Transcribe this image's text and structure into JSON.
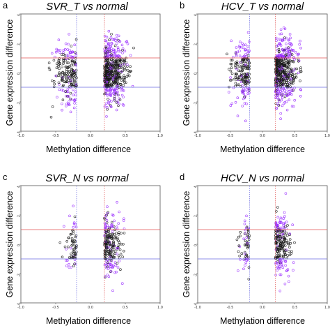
{
  "chart_data": [
    {
      "type": "scatter",
      "panel": "a",
      "title": "SVR_T vs normal",
      "xlabel": "Methylation difference",
      "ylabel": "Gene expression difference",
      "xlim": [
        -1.0,
        1.0
      ],
      "ylim": [
        -4,
        4
      ],
      "x_ticks": [
        "-1.0",
        "-0.5",
        "0.0",
        "0.5",
        "1.0"
      ],
      "y_ticks": [
        "-4",
        "-2",
        "0",
        "2",
        "4"
      ],
      "vlines": [
        -0.2,
        0.2
      ],
      "hlines": [
        1,
        -1
      ],
      "colors": {
        "black": "#1a1a1a",
        "purple": "#9b30ff",
        "red": "#e05050",
        "blue": "#6a6ae0"
      },
      "clusters": [
        {
          "x_range": [
            -0.65,
            -0.2
          ],
          "count": 220,
          "purple_fraction": 0.3
        },
        {
          "x_range": [
            0.2,
            0.62
          ],
          "count": 520,
          "purple_fraction": 0.3
        }
      ],
      "points_description_only": false
    },
    {
      "type": "scatter",
      "panel": "b",
      "title": "HCV_T vs normal",
      "xlabel": "Methylation difference",
      "ylabel": "Gene expression difference",
      "xlim": [
        -1.0,
        1.0
      ],
      "ylim": [
        -4,
        4
      ],
      "x_ticks": [
        "-1.0",
        "-0.5",
        "0.0",
        "0.5",
        "1.0"
      ],
      "y_ticks": [
        "-4",
        "-2",
        "0",
        "2",
        "4"
      ],
      "vlines": [
        -0.2,
        0.2
      ],
      "hlines": [
        1,
        -1
      ],
      "colors": {
        "black": "#1a1a1a",
        "purple": "#9b30ff",
        "red": "#e05050",
        "blue": "#6a6ae0"
      },
      "clusters": [
        {
          "x_range": [
            -0.55,
            -0.2
          ],
          "count": 200,
          "purple_fraction": 0.35
        },
        {
          "x_range": [
            0.2,
            0.6
          ],
          "count": 500,
          "purple_fraction": 0.35
        }
      ]
    },
    {
      "type": "scatter",
      "panel": "c",
      "title": "SVR_N vs normal",
      "xlabel": "Methylation difference",
      "ylabel": "Gene expression difference",
      "xlim": [
        -1.0,
        1.0
      ],
      "ylim": [
        -4,
        4
      ],
      "x_ticks": [
        "-1.0",
        "-0.5",
        "0.0",
        "0.5",
        "1.0"
      ],
      "y_ticks": [
        "-4",
        "-2",
        "0",
        "2",
        "4"
      ],
      "vlines": [
        -0.2,
        0.2
      ],
      "hlines": [
        1,
        -1
      ],
      "colors": {
        "black": "#1a1a1a",
        "purple": "#9b30ff",
        "red": "#e05050",
        "blue": "#6a6ae0"
      },
      "clusters": [
        {
          "x_range": [
            -0.45,
            -0.2
          ],
          "count": 70,
          "purple_fraction": 0.3
        },
        {
          "x_range": [
            0.2,
            0.5
          ],
          "count": 230,
          "purple_fraction": 0.3
        }
      ]
    },
    {
      "type": "scatter",
      "panel": "d",
      "title": "HCV_N vs normal",
      "xlabel": "Methylation difference",
      "ylabel": "Gene expression difference",
      "xlim": [
        -1.0,
        1.0
      ],
      "ylim": [
        -4,
        4
      ],
      "x_ticks": [
        "-1.0",
        "-0.5",
        "0.0",
        "0.5",
        "1.0"
      ],
      "y_ticks": [
        "-4",
        "-2",
        "0",
        "2",
        "4"
      ],
      "vlines": [
        -0.2,
        0.2
      ],
      "hlines": [
        1,
        -1
      ],
      "colors": {
        "black": "#1a1a1a",
        "purple": "#9b30ff",
        "red": "#e05050",
        "blue": "#6a6ae0"
      },
      "clusters": [
        {
          "x_range": [
            -0.42,
            -0.2
          ],
          "count": 60,
          "purple_fraction": 0.3
        },
        {
          "x_range": [
            0.2,
            0.5
          ],
          "count": 220,
          "purple_fraction": 0.3
        }
      ]
    }
  ]
}
